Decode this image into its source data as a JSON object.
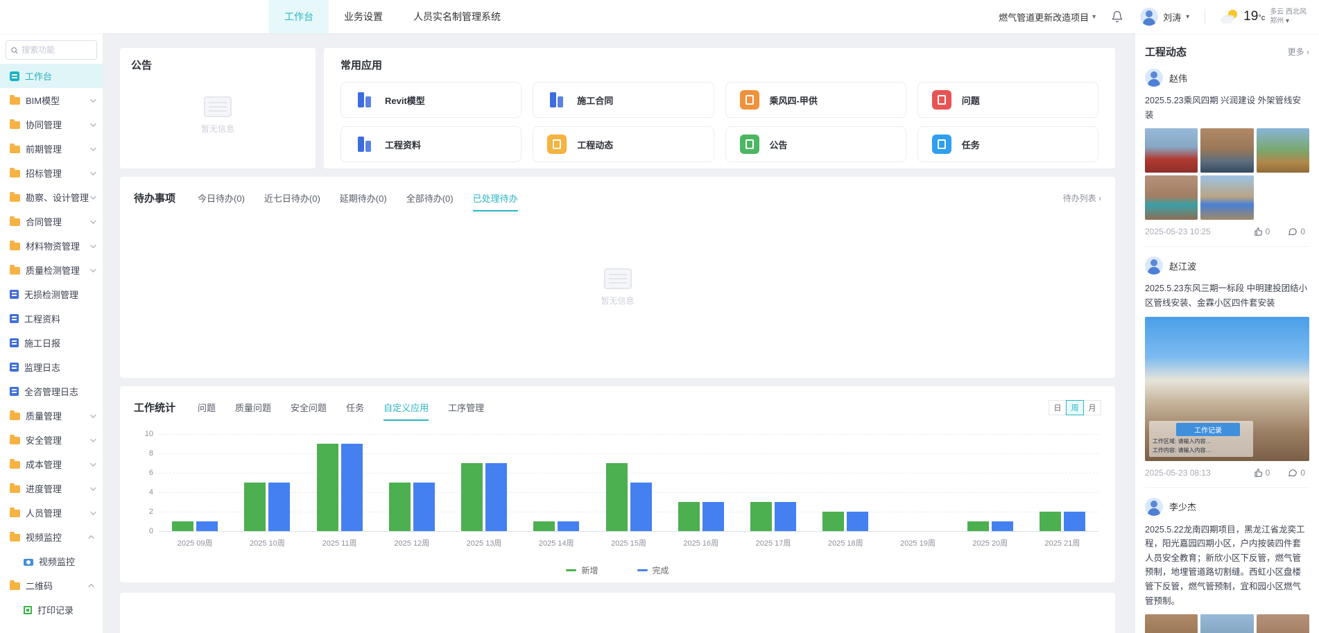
{
  "colors": {
    "accent": "#29b5c3",
    "accent_light": "#e6f8fa",
    "green": "#4caf50",
    "blue": "#4580f0"
  },
  "header": {
    "tabs": [
      {
        "label": "工作台",
        "active": true
      },
      {
        "label": "业务设置",
        "active": false
      },
      {
        "label": "人员实名制管理系统",
        "active": false
      }
    ],
    "project_selector": "燃气管道更新改造项目",
    "user_name": "刘涛",
    "weather": {
      "temp": "19",
      "unit": "°c",
      "condition": "多云",
      "wind": "西北风",
      "city": "郑州"
    }
  },
  "sidebar": {
    "search_placeholder": "搜索功能",
    "items": [
      {
        "label": "工作台",
        "icon": "workbench",
        "active": true
      },
      {
        "label": "BIM模型",
        "icon": "folder",
        "chevron": "down"
      },
      {
        "label": "协同管理",
        "icon": "folder",
        "chevron": "down"
      },
      {
        "label": "前期管理",
        "icon": "folder",
        "chevron": "down"
      },
      {
        "label": "招标管理",
        "icon": "folder",
        "chevron": "down"
      },
      {
        "label": "勘察、设计管理",
        "icon": "folder",
        "chevron": "down"
      },
      {
        "label": "合同管理",
        "icon": "folder",
        "chevron": "down"
      },
      {
        "label": "材料物资管理",
        "icon": "folder",
        "chevron": "down"
      },
      {
        "label": "质量检测管理",
        "icon": "folder",
        "chevron": "down"
      },
      {
        "label": "无损检测管理",
        "icon": "appblue"
      },
      {
        "label": "工程资料",
        "icon": "appblue"
      },
      {
        "label": "施工日报",
        "icon": "appblue"
      },
      {
        "label": "监理日志",
        "icon": "appblue"
      },
      {
        "label": "全咨管理日志",
        "icon": "appblue"
      },
      {
        "label": "质量管理",
        "icon": "folder",
        "chevron": "down"
      },
      {
        "label": "安全管理",
        "icon": "folder",
        "chevron": "down"
      },
      {
        "label": "成本管理",
        "icon": "folder",
        "chevron": "down"
      },
      {
        "label": "进度管理",
        "icon": "folder",
        "chevron": "down"
      },
      {
        "label": "人员管理",
        "icon": "folder",
        "chevron": "down"
      },
      {
        "label": "视频监控",
        "icon": "folder",
        "chevron": "up"
      },
      {
        "label": "视频监控",
        "icon": "camera",
        "sub": true
      },
      {
        "label": "二维码",
        "icon": "folder",
        "chevron": "up"
      },
      {
        "label": "打印记录",
        "icon": "qr",
        "sub": true
      }
    ]
  },
  "announcement": {
    "title": "公告",
    "empty_text": "暂无信息"
  },
  "apps": {
    "title": "常用应用",
    "items": [
      {
        "label": "Revit模型",
        "style": "glyph",
        "color": "#3d6ce0"
      },
      {
        "label": "施工合同",
        "style": "glyph",
        "color": "#3d6ce0"
      },
      {
        "label": "乘风四-甲供",
        "style": "filled",
        "color": "#f0923c"
      },
      {
        "label": "问题",
        "style": "filled",
        "color": "#e85454"
      },
      {
        "label": "工程资料",
        "style": "glyph",
        "color": "#3d6ce0"
      },
      {
        "label": "工程动态",
        "style": "filled",
        "color": "#f6b33f"
      },
      {
        "label": "公告",
        "style": "filled",
        "color": "#4cb663"
      },
      {
        "label": "任务",
        "style": "filled",
        "color": "#2f9ff2"
      }
    ]
  },
  "todo": {
    "title": "待办事项",
    "tabs": [
      "今日待办(0)",
      "近七日待办(0)",
      "延期待办(0)",
      "全部待办(0)",
      "已处理待办"
    ],
    "active_tab": "已处理待办",
    "list_link": "待办列表 ›",
    "empty_text": "暂无信息"
  },
  "stats": {
    "title": "工作统计",
    "tabs": [
      "问题",
      "质量问题",
      "安全问题",
      "任务",
      "自定义应用",
      "工序管理"
    ],
    "active_tab": "自定义应用",
    "period_buttons": [
      "日",
      "周",
      "月"
    ],
    "active_period": "周"
  },
  "chart_data": {
    "type": "bar",
    "categories": [
      "2025 09周",
      "2025 10周",
      "2025 11周",
      "2025 12周",
      "2025 13周",
      "2025 14周",
      "2025 15周",
      "2025 16周",
      "2025 17周",
      "2025 18周",
      "2025 19周",
      "2025 20周",
      "2025 21周"
    ],
    "series": [
      {
        "name": "新增",
        "color": "#4caf50",
        "values": [
          1,
          5,
          9,
          5,
          7,
          1,
          7,
          3,
          3,
          2,
          0,
          1,
          2
        ]
      },
      {
        "name": "完成",
        "color": "#4580f0",
        "values": [
          1,
          5,
          9,
          5,
          7,
          1,
          5,
          3,
          3,
          2,
          0,
          1,
          2
        ]
      }
    ],
    "title": "工作统计 - 自定义应用",
    "xlabel": "",
    "ylabel": "",
    "ylim": [
      0,
      10
    ],
    "yticks": [
      0,
      2,
      4,
      6,
      8,
      10
    ],
    "grid": true,
    "legend_position": "bottom"
  },
  "feed": {
    "title": "工程动态",
    "more_label": "更多 ›",
    "posts": [
      {
        "author": "赵伟",
        "text": "2025.5.23乘风四期 兴润建设 外架管线安装",
        "photos": [
          "g1",
          "g2",
          "g3",
          "g4",
          "g5"
        ],
        "time": "2025-05-23 10:25",
        "likes": "0",
        "comments": "0"
      },
      {
        "author": "赵江波",
        "text": "2025.5.23东风三期一标段 中明建投团结小区管线安装、金霖小区四件套安装",
        "photos": [
          "g6"
        ],
        "big_photo": true,
        "overlay": {
          "badge": "工作记录",
          "line1": "工作区域: 请输入内容…",
          "line2": "工作内容: 请输入内容…"
        },
        "time": "2025-05-23 08:13",
        "likes": "0",
        "comments": "0"
      },
      {
        "author": "李少杰",
        "text": "2025.5.22龙南四期项目，黑龙江省龙奕工程，阳光嘉园四期小区，户内按装四件套人员安全教育；新欣小区下反管，燃气管预制，地埋管道路切割缝。西虹小区盘楼管下反管，燃气管预制，宜和园小区燃气管预制。",
        "photos": [
          "g2",
          "g1",
          "g4"
        ]
      }
    ]
  }
}
